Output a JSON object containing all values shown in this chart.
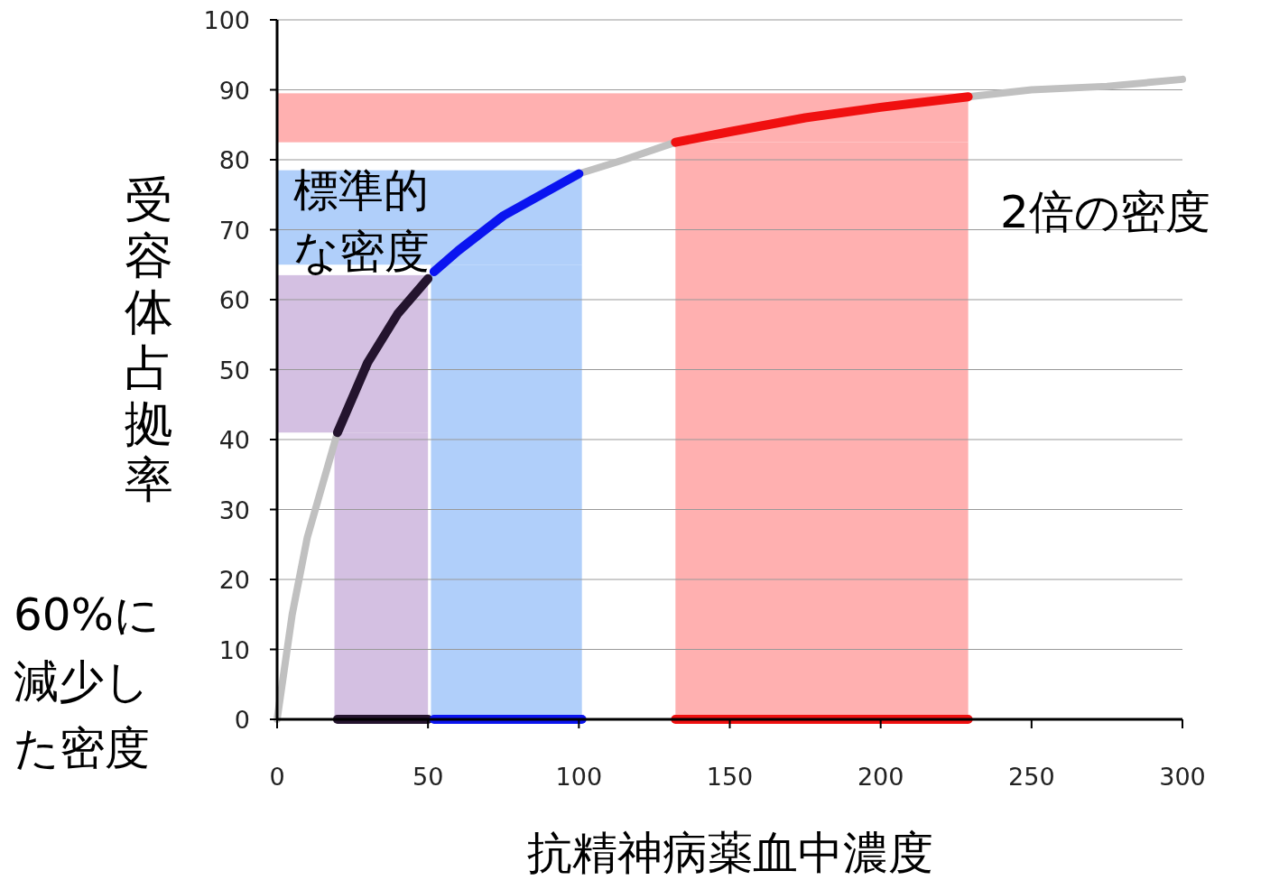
{
  "chart_data": {
    "type": "line",
    "xlabel": "抗精神病薬血中濃度",
    "ylabel": "受容体占拠率",
    "xlim": [
      0,
      300
    ],
    "ylim": [
      0,
      100
    ],
    "xticks": [
      0,
      50,
      100,
      150,
      200,
      250,
      300
    ],
    "yticks": [
      0,
      10,
      20,
      30,
      40,
      50,
      60,
      70,
      80,
      90,
      100
    ],
    "grid": "y",
    "marker": "none",
    "line_style": "solid",
    "series": [
      {
        "color": "#c0c0c0",
        "x": [
          0,
          5,
          10,
          20
        ],
        "values": [
          0,
          15,
          26,
          41
        ]
      },
      {
        "color": "#c0c0c0",
        "x": [
          100,
          115,
          132
        ],
        "values": [
          78,
          80,
          82.5
        ]
      },
      {
        "color": "#c0c0c0",
        "x": [
          229,
          250,
          275,
          300
        ],
        "values": [
          89,
          90,
          90.5,
          91.5
        ]
      },
      {
        "color": "#24142e",
        "x": [
          20,
          30,
          40,
          50
        ],
        "values": [
          41,
          51,
          58,
          63
        ]
      },
      {
        "color": "#0a14f0",
        "x": [
          52,
          60,
          75,
          100
        ],
        "values": [
          64,
          67,
          72,
          78
        ]
      },
      {
        "color": "#f01010",
        "x": [
          132,
          150,
          175,
          200,
          229
        ],
        "values": [
          82.5,
          84,
          86,
          87.5,
          89
        ]
      },
      {
        "color": "#24142e",
        "x": [
          20,
          50
        ],
        "values": [
          0,
          0
        ]
      },
      {
        "color": "#0a14f0",
        "x": [
          52,
          101
        ],
        "values": [
          0,
          0
        ]
      },
      {
        "color": "#f01010",
        "x": [
          132,
          229
        ],
        "values": [
          0,
          0
        ]
      }
    ],
    "bands": [
      {
        "axis": "x",
        "from": 19,
        "to": 50,
        "color": "#d4c0e2"
      },
      {
        "axis": "x",
        "from": 51,
        "to": 101,
        "color": "#b0cffa"
      },
      {
        "axis": "x",
        "from": 132,
        "to": 229,
        "color": "#ffb0b0"
      },
      {
        "axis": "y",
        "from": 41,
        "to": 63.5,
        "color": "#d4c0e2"
      },
      {
        "axis": "y",
        "from": 65,
        "to": 78.5,
        "color": "#b0cffa"
      },
      {
        "axis": "y",
        "from": 82.5,
        "to": 89.5,
        "color": "#ffb0b0"
      }
    ],
    "annotations": [
      "標準的な密度",
      "2倍の密度",
      "60%に減少した密度"
    ]
  }
}
